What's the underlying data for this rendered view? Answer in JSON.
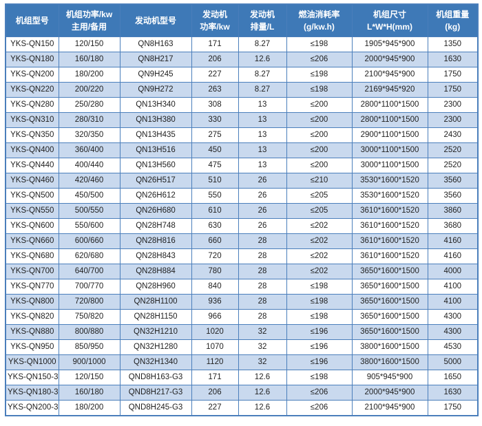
{
  "colors": {
    "header_bg": "#3e79b7",
    "header_text": "#ffffff",
    "row_bg": "#ffffff",
    "row_alt_bg": "#c9d9ee",
    "border": "#4a7ebb",
    "cell_text": "#1f1f1f",
    "page_bg": "#ffffff"
  },
  "table": {
    "columns": [
      {
        "id": "unit-model",
        "lines": [
          "机组型号"
        ]
      },
      {
        "id": "unit-power",
        "lines": [
          "机组功率/kw",
          "主用/备用"
        ]
      },
      {
        "id": "engine-model",
        "lines": [
          "发动机型号"
        ]
      },
      {
        "id": "engine-power",
        "lines": [
          "发动机",
          "功率/kw"
        ]
      },
      {
        "id": "engine-displacement",
        "lines": [
          "发动机",
          "排量/L"
        ]
      },
      {
        "id": "fuel-consumption",
        "lines": [
          "燃油消耗率",
          "(g/kw.h)"
        ]
      },
      {
        "id": "unit-dimensions",
        "lines": [
          "机组尺寸",
          "L*W*H(mm)"
        ]
      },
      {
        "id": "unit-weight",
        "lines": [
          "机组重量",
          "(kg)"
        ]
      }
    ],
    "rows": [
      [
        "YKS-QN150",
        "120/150",
        "QN8H163",
        "171",
        "8.27",
        "≤198",
        "1905*945*900",
        "1350"
      ],
      [
        "YKS-QN180",
        "160/180",
        "QN8H217",
        "206",
        "12.6",
        "≤206",
        "2000*945*900",
        "1630"
      ],
      [
        "YKS-QN200",
        "180/200",
        "QN9H245",
        "227",
        "8.27",
        "≤198",
        "2100*945*900",
        "1750"
      ],
      [
        "YKS-QN220",
        "200/220",
        "QN9H272",
        "263",
        "8.27",
        "≤198",
        "2169*945*920",
        "1750"
      ],
      [
        "YKS-QN280",
        "250/280",
        "QN13H340",
        "308",
        "13",
        "≤200",
        "2800*1100*1500",
        "2300"
      ],
      [
        "YKS-QN310",
        "280/310",
        "QN13H380",
        "330",
        "13",
        "≤200",
        "2800*1100*1500",
        "2300"
      ],
      [
        "YKS-QN350",
        "320/350",
        "QN13H435",
        "275",
        "13",
        "≤200",
        "2900*1100*1500",
        "2430"
      ],
      [
        "YKS-QN400",
        "360/400",
        "QN13H516",
        "450",
        "13",
        "≤200",
        "3000*1100*1500",
        "2520"
      ],
      [
        "YKS-QN440",
        "400/440",
        "QN13H560",
        "475",
        "13",
        "≤200",
        "3000*1100*1500",
        "2520"
      ],
      [
        "YKS-QN460",
        "420/460",
        "QN26H517",
        "510",
        "26",
        "≤210",
        "3530*1600*1520",
        "3560"
      ],
      [
        "YKS-QN500",
        "450/500",
        "QN26H612",
        "550",
        "26",
        "≤205",
        "3530*1600*1520",
        "3560"
      ],
      [
        "YKS-QN550",
        "500/550",
        "QN26H680",
        "610",
        "26",
        "≤205",
        "3610*1600*1520",
        "3860"
      ],
      [
        "YKS-QN600",
        "550/600",
        "QN28H748",
        "630",
        "26",
        "≤202",
        "3610*1600*1520",
        "3680"
      ],
      [
        "YKS-QN660",
        "600/660",
        "QN28H816",
        "660",
        "28",
        "≤202",
        "3610*1600*1520",
        "4160"
      ],
      [
        "YKS-QN680",
        "620/680",
        "QN28H843",
        "720",
        "28",
        "≤202",
        "3610*1600*1520",
        "4160"
      ],
      [
        "YKS-QN700",
        "640/700",
        "QN28H884",
        "780",
        "28",
        "≤202",
        "3650*1600*1500",
        "4000"
      ],
      [
        "YKS-QN770",
        "700/770",
        "QN28H960",
        "840",
        "28",
        "≤198",
        "3650*1600*1500",
        "4100"
      ],
      [
        "YKS-QN800",
        "720/800",
        "QN28H1100",
        "936",
        "28",
        "≤198",
        "3650*1600*1500",
        "4100"
      ],
      [
        "YKS-QN820",
        "750/820",
        "QN28H1150",
        "966",
        "28",
        "≤198",
        "3650*1600*1500",
        "4300"
      ],
      [
        "YKS-QN880",
        "800/880",
        "QN32H1210",
        "1020",
        "32",
        "≤196",
        "3650*1600*1500",
        "4300"
      ],
      [
        "YKS-QN950",
        "850/950",
        "QN32H1280",
        "1070",
        "32",
        "≤196",
        "3800*1600*1500",
        "4530"
      ],
      [
        "YKS-QN1000",
        "900/1000",
        "QN32H1340",
        "1120",
        "32",
        "≤196",
        "3800*1600*1500",
        "5000"
      ],
      [
        "YKS-QN150-3",
        "120/150",
        "QND8H163-G3",
        "171",
        "12.6",
        "≤198",
        "905*945*900",
        "1650"
      ],
      [
        "YKS-QN180-3",
        "160/180",
        "QND8H217-G3",
        "206",
        "12.6",
        "≤206",
        "2000*945*900",
        "1630"
      ],
      [
        "YKS-QN200-3",
        "180/200",
        "QND8H245-G3",
        "227",
        "12.6",
        "≤206",
        "2100*945*900",
        "1750"
      ]
    ]
  }
}
